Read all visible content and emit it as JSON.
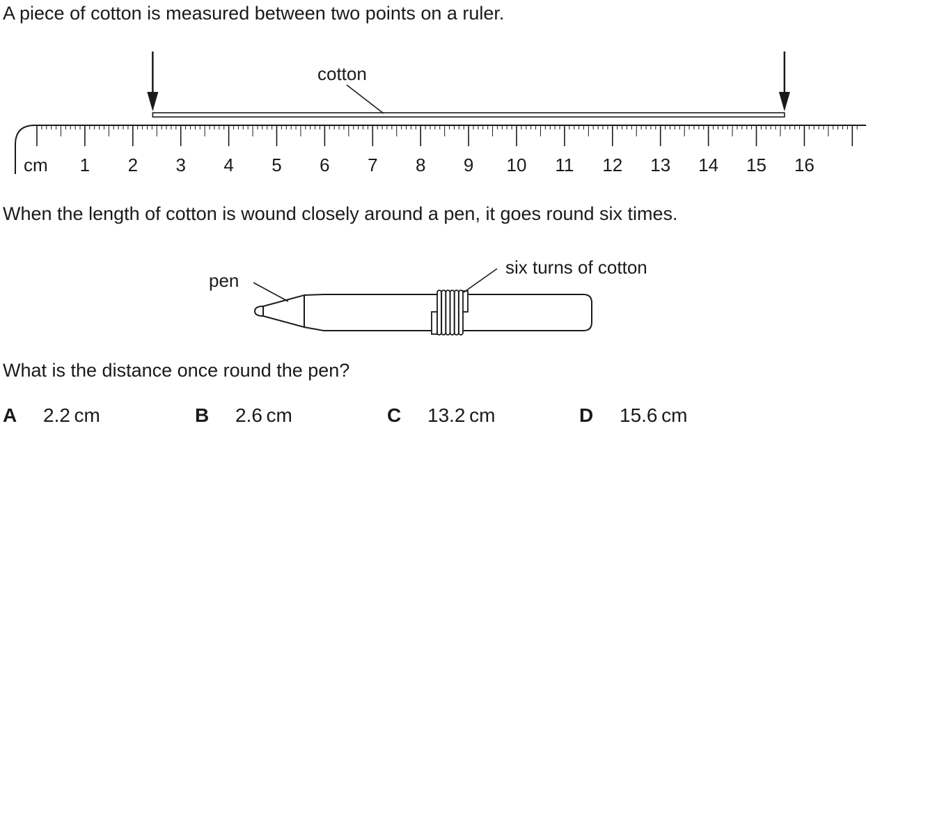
{
  "intro_text": "A piece of cotton is measured between two points on a ruler.",
  "ruler": {
    "unit_label": "cm",
    "numbers": [
      "1",
      "2",
      "3",
      "4",
      "5",
      "6",
      "7",
      "8",
      "9",
      "10",
      "11",
      "12",
      "13",
      "14",
      "15",
      "16"
    ],
    "cotton_label": "cotton",
    "cotton_start_cm": 2.4,
    "cotton_end_cm": 15.6
  },
  "wind_text": "When the length of cotton is wound closely around a pen, it goes round six times.",
  "pen_figure": {
    "pen_label": "pen",
    "turns_label": "six turns of cotton",
    "turns": 6
  },
  "question_text": "What is the distance once round the pen?",
  "options": [
    {
      "letter": "A",
      "value": "2.2 cm"
    },
    {
      "letter": "B",
      "value": "2.6 cm"
    },
    {
      "letter": "C",
      "value": "13.2 cm"
    },
    {
      "letter": "D",
      "value": "15.6 cm"
    }
  ]
}
